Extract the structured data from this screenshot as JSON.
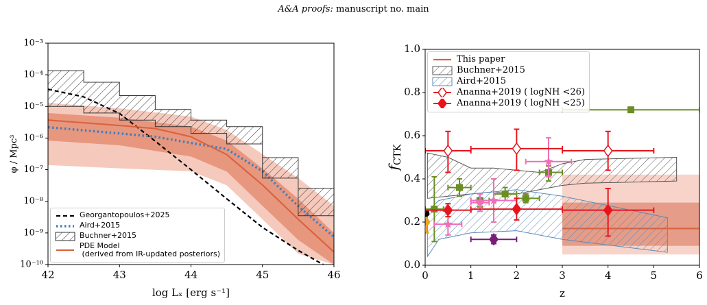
{
  "header": {
    "journal": "A&A proofs:",
    "text": "manuscript no. main"
  },
  "chart_data": [
    {
      "type": "line",
      "ylog": true,
      "xlabel": "log Lₓ [erg s⁻¹]",
      "ylabel": "φ / Mpc³",
      "xlim": [
        42,
        46
      ],
      "ylim": [
        1e-10,
        0.001
      ],
      "xticks": [
        42,
        43,
        44,
        45,
        46
      ],
      "yticks": [
        {
          "value": 1e-10,
          "label": "10⁻¹⁰"
        },
        {
          "value": 1e-09,
          "label": "10⁻⁹"
        },
        {
          "value": 1e-08,
          "label": "10⁻⁸"
        },
        {
          "value": 1e-07,
          "label": "10⁻⁷"
        },
        {
          "value": 1e-06,
          "label": "10⁻⁶"
        },
        {
          "value": 1e-05,
          "label": "10⁻⁵"
        },
        {
          "value": 0.0001,
          "label": "10⁻⁴"
        },
        {
          "value": 0.001,
          "label": "10⁻³"
        }
      ],
      "legend": "lower left",
      "series": [
        {
          "style": "band",
          "color": "#f5cabd",
          "x": [
            42,
            43,
            44,
            44.5,
            45,
            45.5,
            46
          ],
          "upper": [
            1.3e-05,
            8.7e-06,
            4.8e-06,
            1.8e-06,
            3.1e-07,
            5.4e-08,
            7.2e-09
          ],
          "lower": [
            1.4e-07,
            1.1e-07,
            8.9e-08,
            3.2e-08,
            2.7e-09,
            2.2e-10,
            1e-10
          ]
        },
        {
          "style": "band",
          "color": "#e8977f",
          "x": [
            42,
            43,
            44,
            44.5,
            45,
            45.5,
            46
          ],
          "upper": [
            6.2e-06,
            4.4e-06,
            2.3e-06,
            8.3e-07,
            1.1e-07,
            1.2e-08,
            1e-09
          ],
          "lower": [
            8.3e-07,
            5.9e-07,
            2.6e-07,
            8.7e-08,
            7.2e-09,
            6e-10,
            1e-10
          ]
        },
        {
          "name": "Georgantopoulos+2025",
          "style": "dashed",
          "color": "#000000",
          "x": [
            42,
            42.5,
            43,
            43.5,
            44,
            44.5,
            45,
            45.5,
            45.85
          ],
          "values": [
            3.5e-05,
            2e-05,
            6e-06,
            8e-07,
            1e-07,
            1.2e-08,
            1.5e-09,
            2.8e-10,
            1e-10
          ]
        },
        {
          "name": "Aird+2015",
          "style": "dotted",
          "color": "#3f7fbf",
          "x": [
            42,
            43,
            43.5,
            44,
            44.5,
            45,
            45.5,
            46
          ],
          "values": [
            2.2e-06,
            1.4e-06,
            1.1e-06,
            7e-07,
            4.5e-07,
            9e-08,
            7e-09,
            7.5e-10
          ]
        },
        {
          "name": "Buchner+2015",
          "style": "step-band",
          "color": "#333333",
          "bins": [
            42,
            42.5,
            43,
            43.5,
            44,
            44.5,
            45,
            45.5,
            46
          ],
          "upper": [
            0.000135,
            5.8e-05,
            2.2e-05,
            8e-06,
            3.7e-06,
            2.3e-06,
            2.4e-07,
            2.6e-08
          ],
          "lower": [
            1e-05,
            6.2e-06,
            3.7e-06,
            2.3e-06,
            1.4e-06,
            6.5e-07,
            5.4e-08,
            3.5e-09
          ]
        },
        {
          "name": "PDE Model\n (derived from IR-updated posteriors)",
          "style": "solid",
          "color": "#d9633f",
          "x": [
            42,
            43,
            43.5,
            44,
            44.5,
            45,
            45.5,
            46
          ],
          "values": [
            3.7e-06,
            2.5e-06,
            2e-06,
            1.1e-06,
            3e-07,
            3.3e-08,
            2.7e-09,
            2.5e-10
          ]
        }
      ]
    },
    {
      "type": "errorbar",
      "ylog": false,
      "xlabel": "z",
      "ylabel": "f",
      "ylabel_sub": "CTK",
      "xlim": [
        0,
        6
      ],
      "ylim": [
        0,
        1
      ],
      "xticks": [
        0,
        1,
        2,
        3,
        4,
        5,
        6
      ],
      "yticks": [
        {
          "value": 0,
          "label": "0.0"
        },
        0.2,
        0.4,
        0.6,
        0.8,
        {
          "value": 1,
          "label": "1.0"
        }
      ],
      "legend": "upper left",
      "series": [
        {
          "style": "band",
          "color": "#f8d3c9",
          "x": [
            3,
            6
          ],
          "upper": [
            0.42,
            0.42
          ],
          "lower": [
            0.05,
            0.05
          ]
        },
        {
          "style": "band",
          "color": "#e59c88",
          "x": [
            3,
            6
          ],
          "upper": [
            0.29,
            0.29
          ],
          "lower": [
            0.09,
            0.09
          ]
        },
        {
          "name": "This paper",
          "style": "solid",
          "color": "#d9633f",
          "x": [
            3,
            6
          ],
          "values": [
            0.17,
            0.17
          ]
        },
        {
          "name": "Buchner+2015",
          "style": "hatch-band",
          "color": "#555555",
          "x": [
            0.05,
            0.5,
            1,
            1.5,
            2,
            2.5,
            3,
            3.5,
            5.5
          ],
          "upper": [
            0.52,
            0.5,
            0.45,
            0.45,
            0.44,
            0.43,
            0.47,
            0.49,
            0.5
          ],
          "lower": [
            0.31,
            0.32,
            0.33,
            0.34,
            0.33,
            0.35,
            0.37,
            0.38,
            0.39
          ]
        },
        {
          "name": "Aird+2015",
          "style": "hatch-band",
          "color": "#5a8ab8",
          "x": [
            0.05,
            0.3,
            1,
            2,
            3,
            5.3
          ],
          "upper": [
            0.25,
            0.3,
            0.33,
            0.35,
            0.32,
            0.22
          ],
          "lower": [
            0.04,
            0.12,
            0.15,
            0.16,
            0.12,
            0.06
          ]
        },
        {
          "style": "errorbar",
          "marker": "square",
          "color": "#6b8e23",
          "x": [
            0.2,
            0.75,
            1.2,
            1.75,
            2.2,
            2.7
          ],
          "values": [
            0.26,
            0.36,
            0.3,
            0.33,
            0.31,
            0.43
          ],
          "xerr": [
            [
              0.2,
              0.2
            ],
            [
              0.25,
              0.25
            ],
            [
              0.2,
              0.2
            ],
            [
              0.25,
              0.25
            ],
            [
              0.2,
              0.3
            ],
            [
              0.2,
              0.3
            ]
          ],
          "yerr": [
            [
              0.15,
              0.15
            ],
            [
              0.04,
              0.04
            ],
            [
              0.03,
              0.03
            ],
            [
              0.03,
              0.03
            ],
            [
              0.02,
              0.02
            ],
            [
              0.04,
              0.03
            ]
          ]
        },
        {
          "style": "errorbar",
          "marker": "square",
          "color": "#6b8e23",
          "x": [
            4.5
          ],
          "values": [
            0.72
          ],
          "xerr": [
            [
              1.5,
              1.5
            ]
          ]
        },
        {
          "style": "errorbar",
          "marker": "star",
          "color": "#ee6fb5",
          "x": [
            0.5,
            1.2,
            1.5,
            2.7
          ],
          "values": [
            0.19,
            0.29,
            0.3,
            0.48
          ],
          "xerr": [
            [
              0.3,
              0.3
            ],
            [
              0.2,
              0.2
            ],
            [
              0.5,
              0.5
            ],
            [
              0.5,
              0.5
            ]
          ],
          "yerr": [
            [
              0.05,
              0.05
            ],
            [
              0.04,
              0.04
            ],
            [
              0.1,
              0.1
            ],
            [
              0.07,
              0.11
            ]
          ]
        },
        {
          "style": "errorbar",
          "marker": "diamond",
          "color": "#7a1a7a",
          "x": [
            1.5
          ],
          "values": [
            0.12
          ],
          "xerr": [
            [
              0.5,
              0.5
            ]
          ],
          "yerr": [
            [
              0.02,
              0.02
            ]
          ]
        },
        {
          "style": "errorbar",
          "marker": "circle",
          "color": "#e6a72a",
          "x": [
            0.03
          ],
          "values": [
            0.2
          ],
          "yerr": [
            [
              0.05,
              0.05
            ]
          ]
        },
        {
          "style": "errorbar",
          "marker": "circle",
          "color": "#000000",
          "x": [
            0.02
          ],
          "values": [
            0.24
          ]
        },
        {
          "name": "Ananna+2019 ( logNH <26)",
          "style": "errorbar",
          "marker": "diamond-open",
          "color": "#e8141c",
          "x": [
            0.5,
            2,
            4
          ],
          "values": [
            0.53,
            0.54,
            0.53
          ],
          "xerr": [
            [
              0.5,
              0.5
            ],
            [
              1,
              1
            ],
            [
              1,
              1
            ]
          ],
          "yerr": [
            [
              0.1,
              0.09
            ],
            [
              0.1,
              0.09
            ],
            [
              0.09,
              0.09
            ]
          ]
        },
        {
          "name": "Ananna+2019 ( logNH <25)",
          "style": "errorbar",
          "marker": "diamond",
          "color": "#e8141c",
          "x": [
            0.5,
            2,
            4
          ],
          "values": [
            0.255,
            0.26,
            0.255
          ],
          "xerr": [
            [
              0.5,
              0.5
            ],
            [
              1,
              1
            ],
            [
              1,
              1
            ]
          ],
          "yerr": [
            [
              0.03,
              0.03
            ],
            [
              0.05,
              0.05
            ],
            [
              0.12,
              0.1
            ]
          ]
        }
      ]
    }
  ]
}
